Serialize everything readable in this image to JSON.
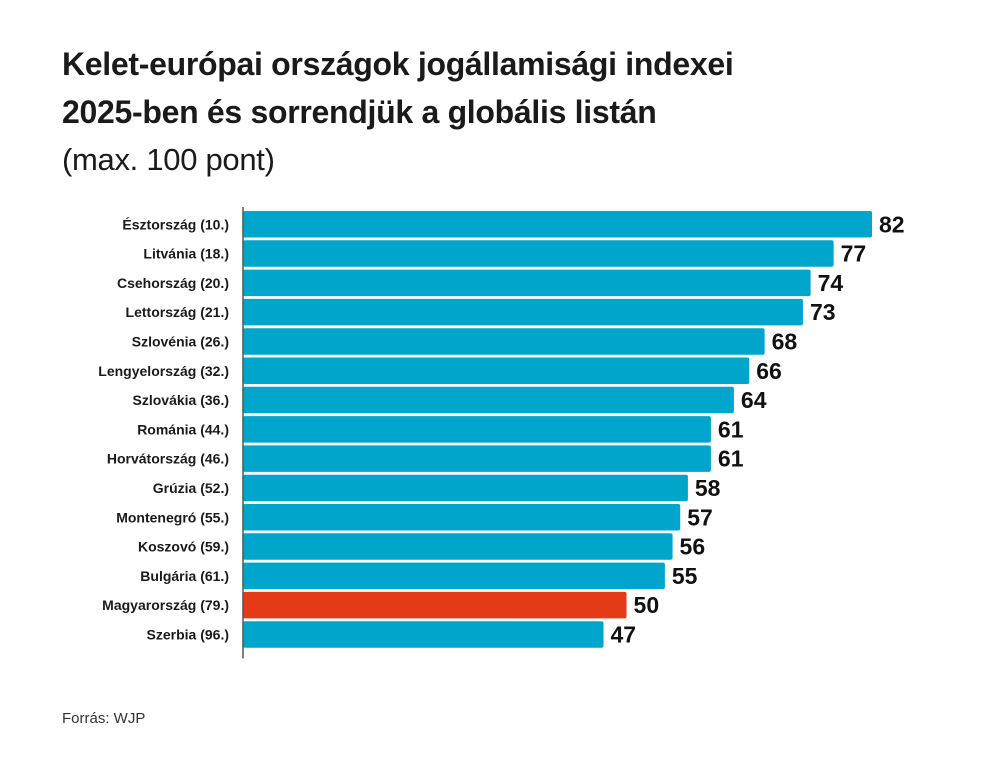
{
  "chart_data": {
    "type": "bar",
    "orientation": "horizontal",
    "title": "Kelet-európai országok jogállamisági indexei 2025-ben és sorrendjük a globális listán",
    "title_lines": [
      "Kelet-európai országok jogállamisági indexei",
      "2025-ben és sorrendjük a globális listán"
    ],
    "subtitle": "(max. 100 pont)",
    "xlabel": "",
    "ylabel": "",
    "xlim": [
      0,
      82
    ],
    "grid": false,
    "categories": [
      "Észtország (10.)",
      "Litvánia (18.)",
      "Csehország (20.)",
      "Lettország (21.)",
      "Szlovénia (26.)",
      "Lengyelország (32.)",
      "Szlovákia (36.)",
      "Románia (44.)",
      "Horvátország (46.)",
      "Grúzia (52.)",
      "Montenegró (55.)",
      "Koszovó (59.)",
      "Bulgária (61.)",
      "Magyarország (79.)",
      "Szerbia (96.)"
    ],
    "values": [
      82,
      77,
      74,
      73,
      68,
      66,
      64,
      61,
      61,
      58,
      57,
      56,
      55,
      50,
      47
    ],
    "highlight_index": 13,
    "colors": {
      "default": "#00a5cc",
      "highlight": "#e43a15"
    },
    "source": "Forrás: WJP"
  }
}
